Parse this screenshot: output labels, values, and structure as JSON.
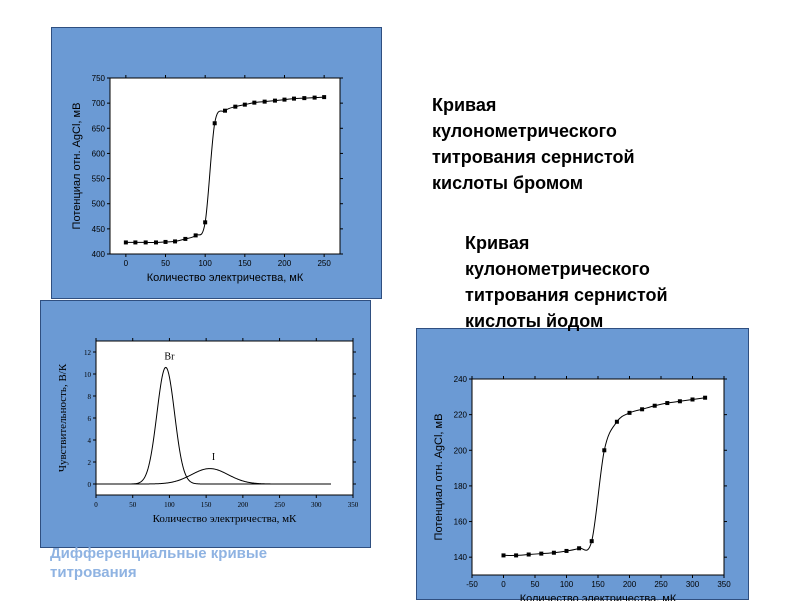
{
  "captions": {
    "bromine": "Кривая\nкулонометрического\nтитрования сернистой\nкислоты бромом",
    "iodine": "Кривая\nкулонометрического\nтитрования сернистой\nкислоты йодом",
    "differential": "Дифференциальные кривые\n титрования"
  },
  "chart_data": [
    {
      "id": "bromine",
      "type": "line",
      "xlabel": "Количество электричества, мК",
      "ylabel": "Потенциал отн. AgCl, мВ",
      "xlim": [
        -20,
        270
      ],
      "ylim": [
        400,
        750
      ],
      "xticks": [
        0,
        50,
        100,
        150,
        200,
        250
      ],
      "yticks": [
        400,
        450,
        500,
        550,
        600,
        650,
        700,
        750
      ],
      "series": [
        {
          "x": [
            0,
            12,
            25,
            38,
            50,
            62,
            75,
            88,
            100,
            112,
            125,
            138,
            150,
            162,
            175,
            188,
            200,
            212,
            225,
            238,
            250
          ],
          "y": [
            423,
            423,
            423,
            423,
            424,
            425,
            430,
            437,
            463,
            660,
            685,
            693,
            697,
            701,
            703,
            705,
            707,
            709,
            710,
            711,
            712
          ],
          "markers": true
        }
      ],
      "colors": {
        "line": "#000000",
        "marker": "#000000"
      }
    },
    {
      "id": "differential",
      "type": "line",
      "xlabel": "Количество электричества, мК",
      "ylabel": "Чувствительность, В/К",
      "xlim": [
        0,
        350
      ],
      "ylim": [
        -1,
        13
      ],
      "xticks": [
        0,
        50,
        100,
        150,
        200,
        250,
        300,
        350
      ],
      "yticks": [
        0,
        2,
        4,
        6,
        8,
        10,
        12
      ],
      "series": [
        {
          "name": "Br",
          "peak_x": 95,
          "peak_y": 10.6,
          "width": 12,
          "x_range": [
            0,
            320
          ]
        },
        {
          "name": "I",
          "peak_x": 155,
          "peak_y": 1.4,
          "width": 25,
          "x_range": [
            0,
            320
          ]
        }
      ],
      "annotations": [
        {
          "text": "Br",
          "x": 100,
          "y": 11.3
        },
        {
          "text": "I",
          "x": 160,
          "y": 2.2
        }
      ]
    },
    {
      "id": "iodine",
      "type": "line",
      "xlabel": "Количество электричества, мК",
      "ylabel": "Потенциал отн. AgCl, мВ",
      "xlim": [
        -50,
        350
      ],
      "ylim": [
        130,
        240
      ],
      "xticks": [
        -50,
        0,
        50,
        100,
        150,
        200,
        250,
        300,
        350
      ],
      "yticks": [
        140,
        160,
        180,
        200,
        220,
        240
      ],
      "series": [
        {
          "x": [
            0,
            20,
            40,
            60,
            80,
            100,
            120,
            140,
            160,
            180,
            200,
            220,
            240,
            260,
            280,
            300,
            320
          ],
          "y": [
            141,
            141,
            141.5,
            142,
            142.5,
            143.5,
            145,
            149,
            200,
            216,
            221,
            223,
            225,
            226.5,
            227.5,
            228.5,
            229.5
          ],
          "markers": true
        }
      ]
    }
  ]
}
